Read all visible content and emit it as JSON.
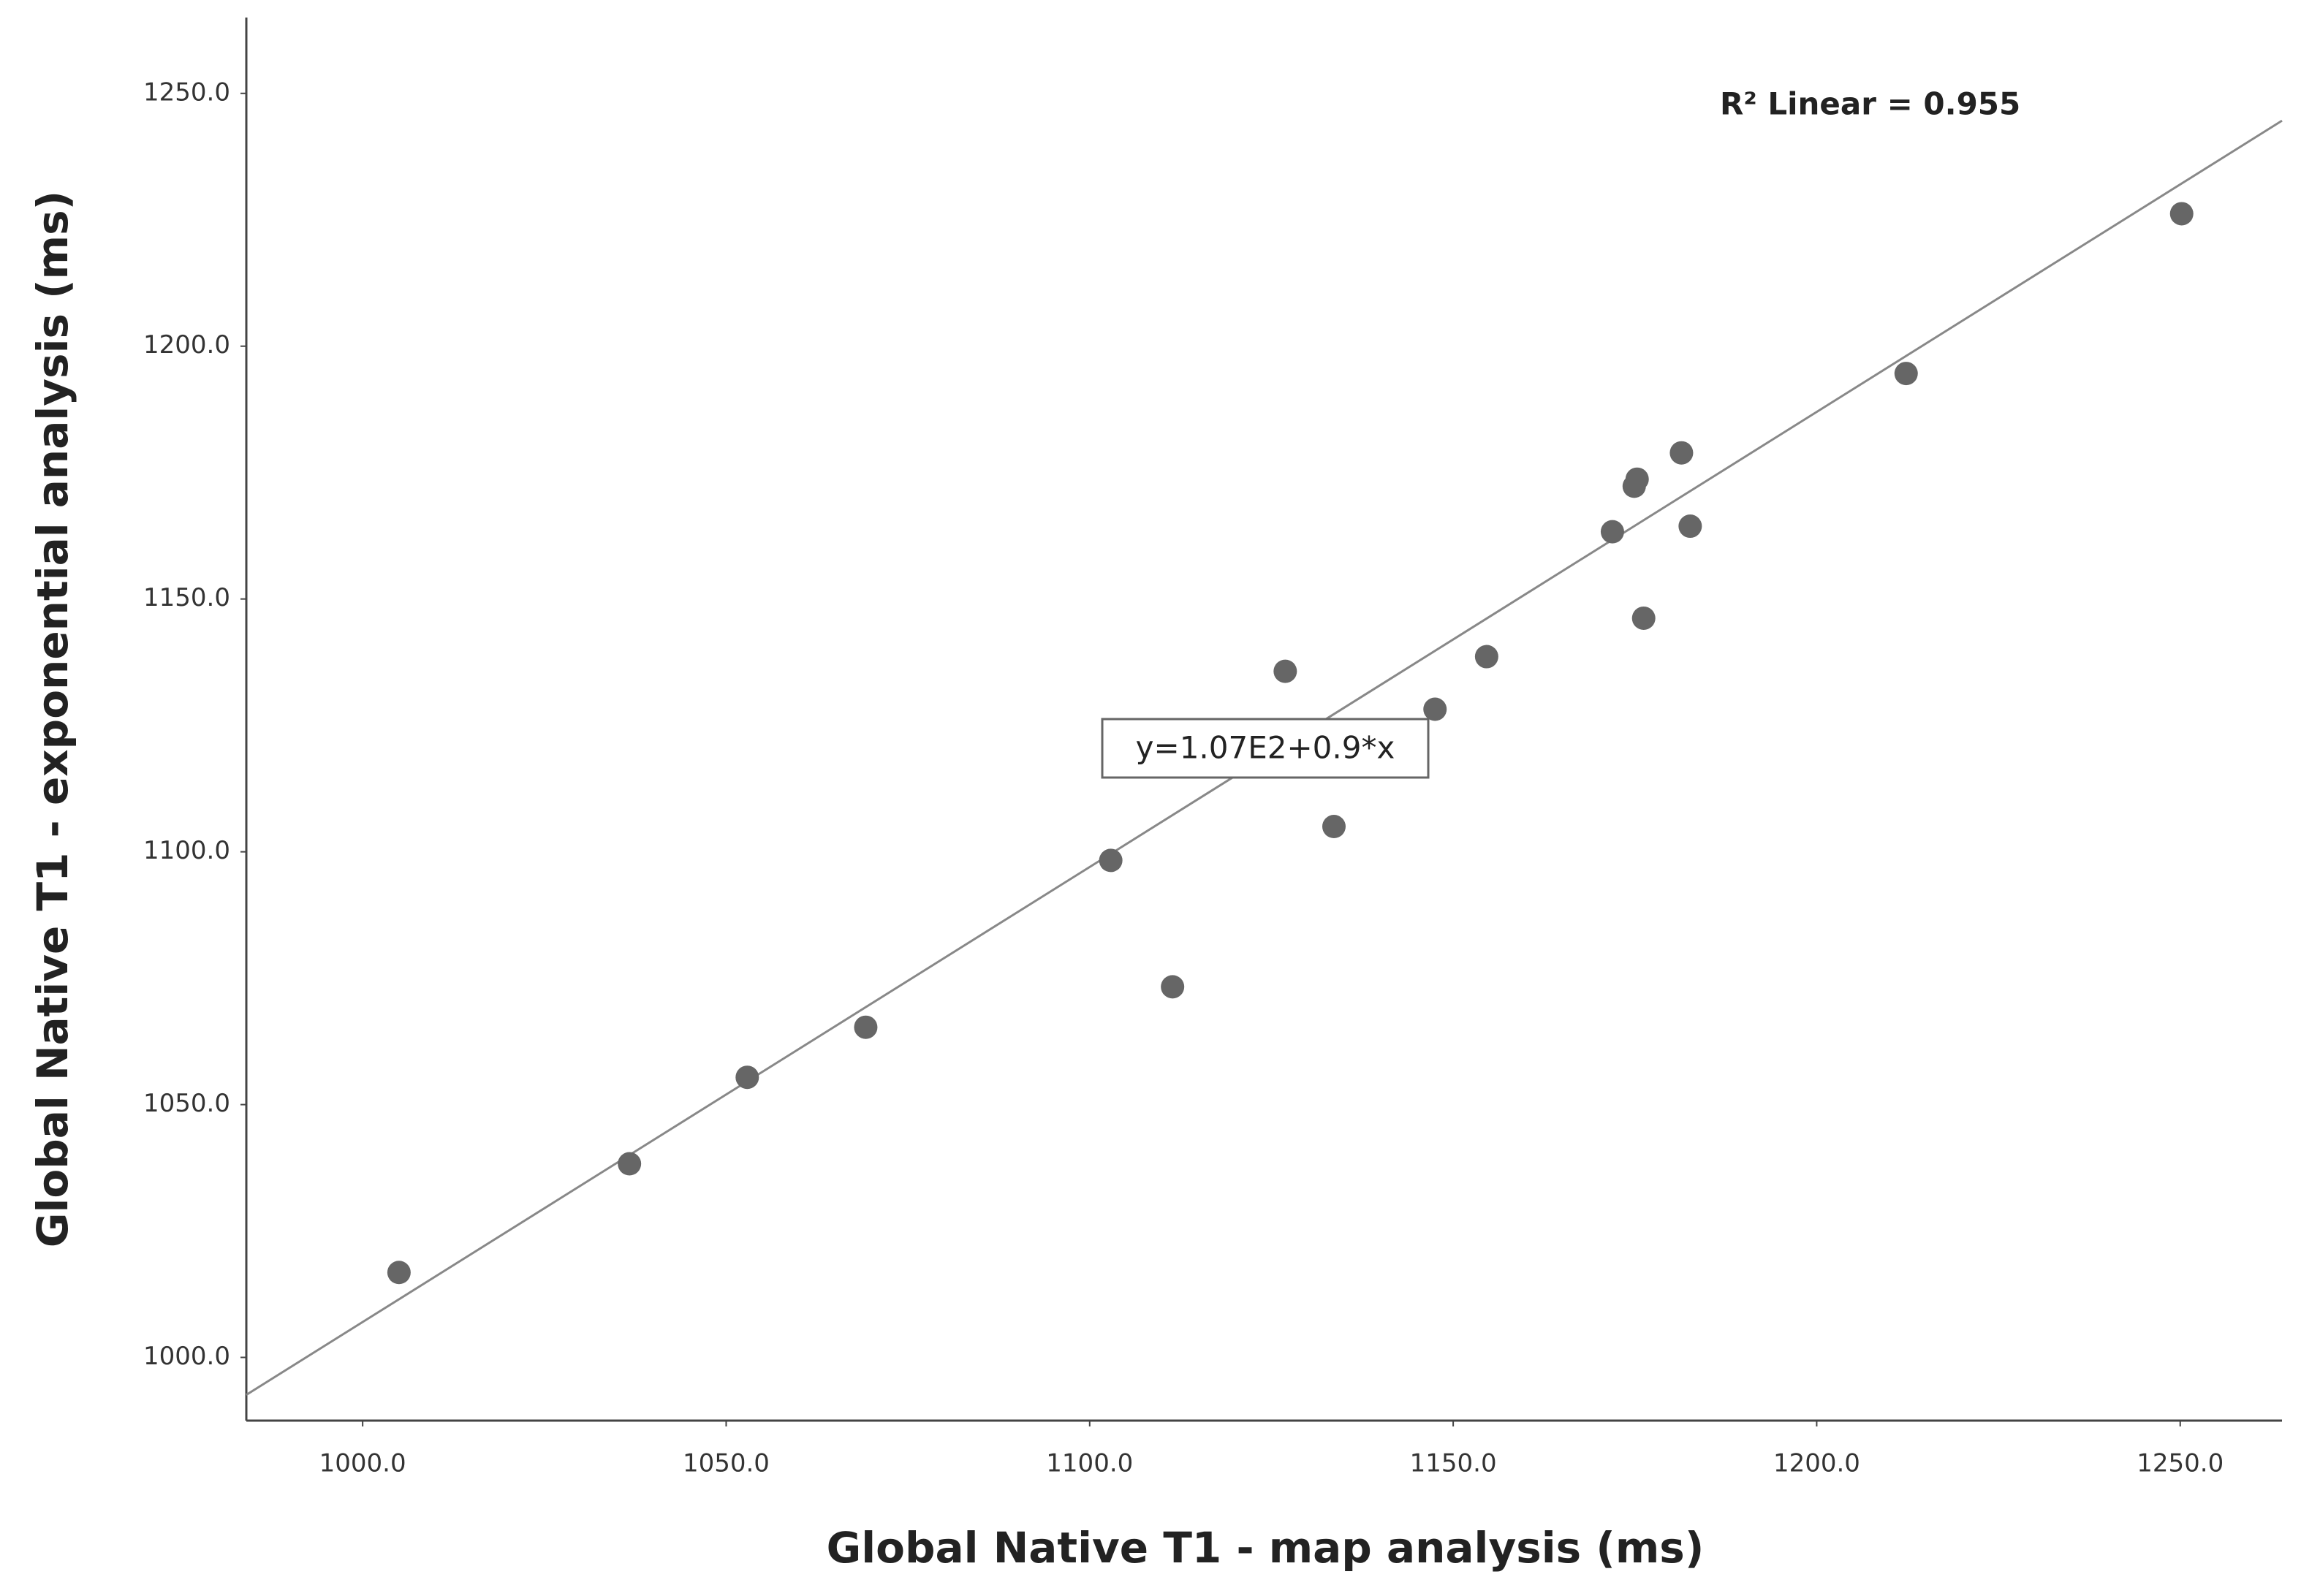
{
  "chart_data": {
    "type": "scatter",
    "x_label": "Global Native T1 - map analysis (ms)",
    "y_label": "Global Native T1 - exponential analysis (ms)",
    "x": [
      1005.0,
      1036.7,
      1052.9,
      1069.2,
      1102.9,
      1111.4,
      1126.9,
      1133.6,
      1147.5,
      1154.6,
      1171.9,
      1174.9,
      1175.3,
      1176.2,
      1181.4,
      1182.6,
      1212.3,
      1250.2
    ],
    "values": [
      1016.8,
      1038.3,
      1055.4,
      1065.3,
      1098.3,
      1073.3,
      1135.7,
      1105.0,
      1128.2,
      1138.6,
      1163.3,
      1172.3,
      1173.7,
      1146.2,
      1178.9,
      1164.4,
      1194.6,
      1226.2
    ],
    "color": "#666666",
    "xlim": [
      984,
      1264
    ],
    "ylim": [
      987.5,
      1265
    ],
    "xticks": [
      {
        "value": 1000,
        "label": "1000.0"
      },
      {
        "value": 1050,
        "label": "1050.0"
      },
      {
        "value": 1100,
        "label": "1100.0"
      },
      {
        "value": 1150,
        "label": "1150.0"
      },
      {
        "value": 1200,
        "label": "1200.0"
      },
      {
        "value": 1250,
        "label": "1250.0"
      }
    ],
    "yticks": [
      {
        "value": 1000,
        "label": "1000.0"
      },
      {
        "value": 1050,
        "label": "1050.0"
      },
      {
        "value": 1100,
        "label": "1100.0"
      },
      {
        "value": 1150,
        "label": "1150.0"
      },
      {
        "value": 1200,
        "label": "1200.0"
      },
      {
        "value": 1250,
        "label": "1250.0"
      }
    ],
    "fit": {
      "label": "y=1.07E2+0.9*x",
      "intercept": 107,
      "slope": 0.9,
      "color": "#888888"
    },
    "r2_label": "R² Linear = 0.955",
    "grid": false
  }
}
